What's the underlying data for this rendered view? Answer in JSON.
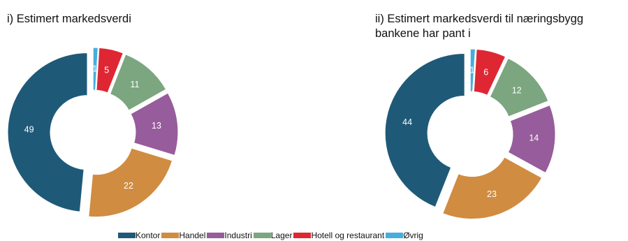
{
  "colors": {
    "Kontor": "#1e5a78",
    "Handel": "#d08c41",
    "Industri": "#975c9b",
    "Lager": "#7ba67f",
    "Hotell og restaurant": "#de2733",
    "Øvrig": "#45aedd"
  },
  "legend": [
    "Kontor",
    "Handel",
    "Industri",
    "Lager",
    "Hotell og restaurant",
    "Øvrig"
  ],
  "chart_data": [
    {
      "type": "pie",
      "style": "donut",
      "title": "i) Estimert markedsverdi",
      "categories": [
        "Øvrig",
        "Hotell og restaurant",
        "Lager",
        "Industri",
        "Handel",
        "Kontor"
      ],
      "values": [
        1,
        5,
        11,
        13,
        22,
        49
      ],
      "legend_position": "bottom"
    },
    {
      "type": "pie",
      "style": "donut",
      "title": "ii) Estimert markedsverdi til næringsbygg bankene har pant i",
      "categories": [
        "Øvrig",
        "Hotell og restaurant",
        "Lager",
        "Industri",
        "Handel",
        "Kontor"
      ],
      "values": [
        1,
        6,
        12,
        14,
        23,
        44
      ],
      "legend_position": "bottom"
    }
  ]
}
